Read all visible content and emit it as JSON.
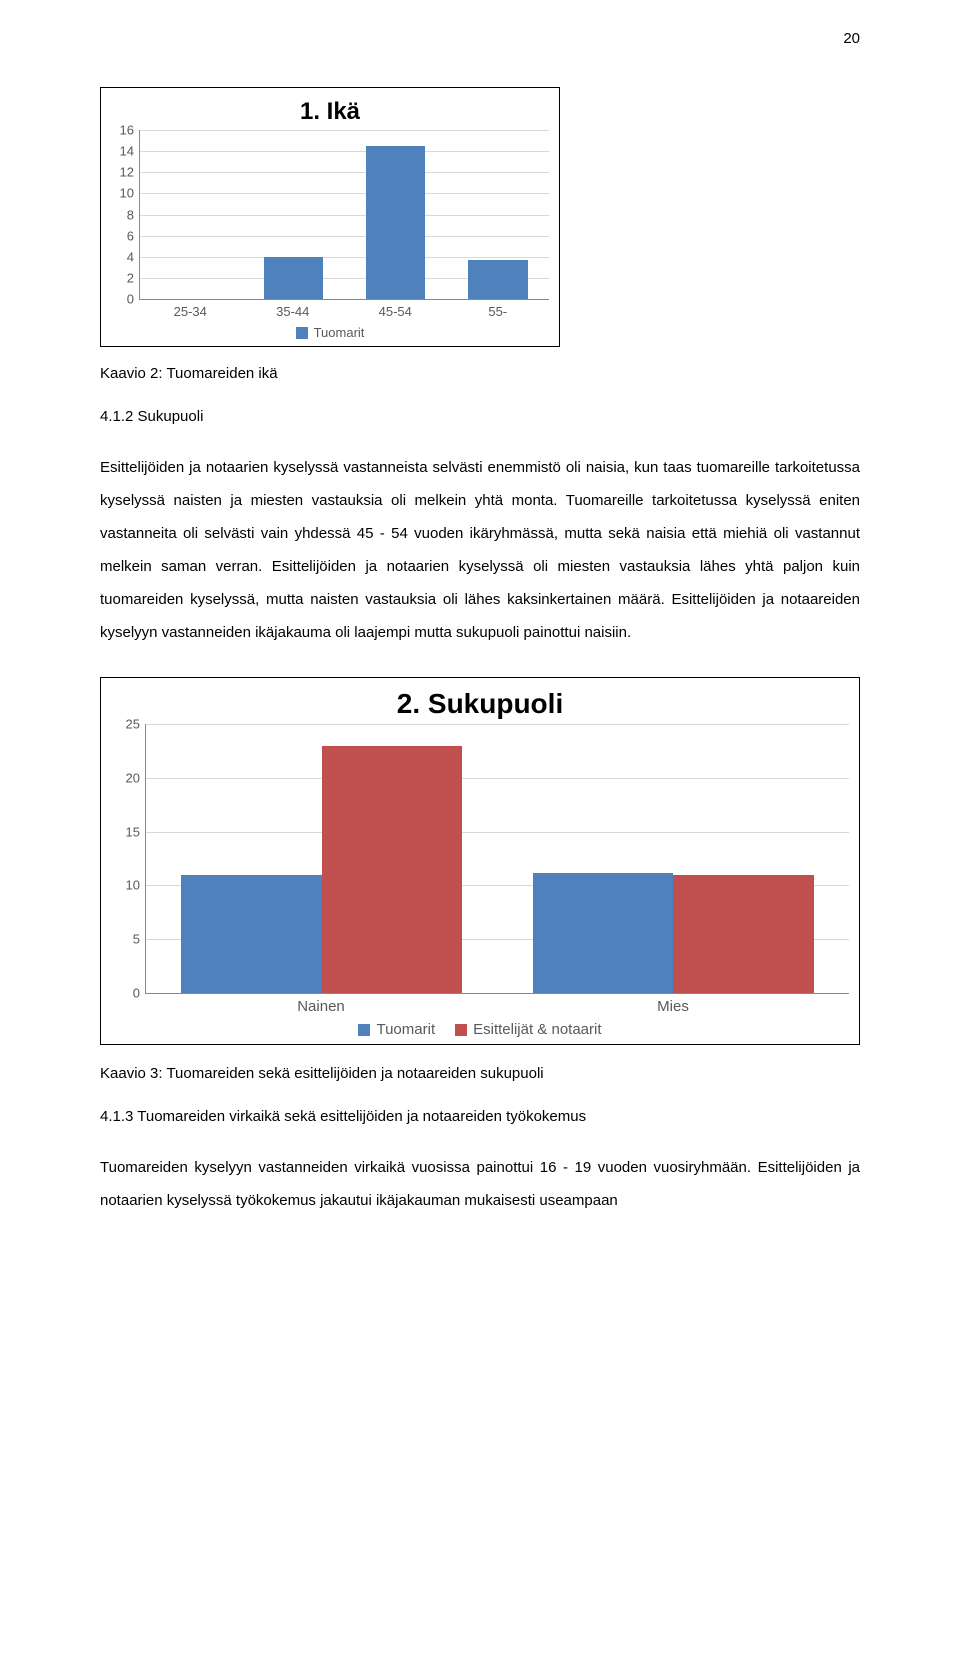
{
  "page_number": "20",
  "chart1": {
    "type": "bar",
    "title": "1. Ikä",
    "categories": [
      "25-34",
      "35-44",
      "45-54",
      "55-"
    ],
    "values": [
      0,
      4,
      14.5,
      3.7
    ],
    "bar_color": "#4f81bd",
    "grid_color": "#d9d9d9",
    "ylim": [
      0,
      16
    ],
    "ytick_step": 2,
    "legend": [
      {
        "label": "Tuomarit",
        "color": "#4f81bd"
      }
    ]
  },
  "caption1": "Kaavio 2: Tuomareiden ikä",
  "section1_heading": "4.1.2 Sukupuoli",
  "para1": "Esittelijöiden ja notaarien kyselyssä vastanneista selvästi enemmistö oli naisia, kun taas tuomareille tarkoitetussa kyselyssä naisten ja miesten vastauksia oli melkein yhtä monta. Tuomareille tarkoitetussa kyselyssä eniten vastanneita oli selvästi vain yhdessä 45 - 54 vuoden ikäryhmässä, mutta sekä naisia että miehiä oli vastannut melkein saman verran. Esittelijöiden ja notaarien kyselyssä oli miesten vastauksia lähes yhtä paljon kuin tuomareiden kyselyssä, mutta naisten vastauksia oli lähes kaksinkertainen määrä. Esittelijöiden ja notaareiden kyselyyn vastanneiden ikäjakauma oli laajempi mutta sukupuoli painottui naisiin.",
  "chart2": {
    "type": "bar",
    "title": "2. Sukupuoli",
    "categories": [
      "Nainen",
      "Mies"
    ],
    "series": [
      {
        "name": "Tuomarit",
        "color": "#4f81bd",
        "values": [
          11,
          11.2
        ]
      },
      {
        "name": "Esittelijät & notaarit",
        "color": "#c0504d",
        "values": [
          23,
          11
        ]
      }
    ],
    "grid_color": "#d9d9d9",
    "ylim": [
      0,
      25
    ],
    "ytick_step": 5,
    "legend": [
      {
        "label": "Tuomarit",
        "color": "#4f81bd"
      },
      {
        "label": "Esittelijät & notaarit",
        "color": "#c0504d"
      }
    ]
  },
  "caption2": "Kaavio 3: Tuomareiden sekä esittelijöiden ja notaareiden sukupuoli",
  "section2_heading": "4.1.3 Tuomareiden virkaikä sekä esittelijöiden ja notaareiden työkokemus",
  "para2": "Tuomareiden kyselyyn vastanneiden virkaikä vuosissa painottui 16 - 19 vuoden vuosiryhmään. Esittelijöiden ja notaarien kyselyssä työkokemus jakautui ikäjakauman mukaisesti useampaan"
}
